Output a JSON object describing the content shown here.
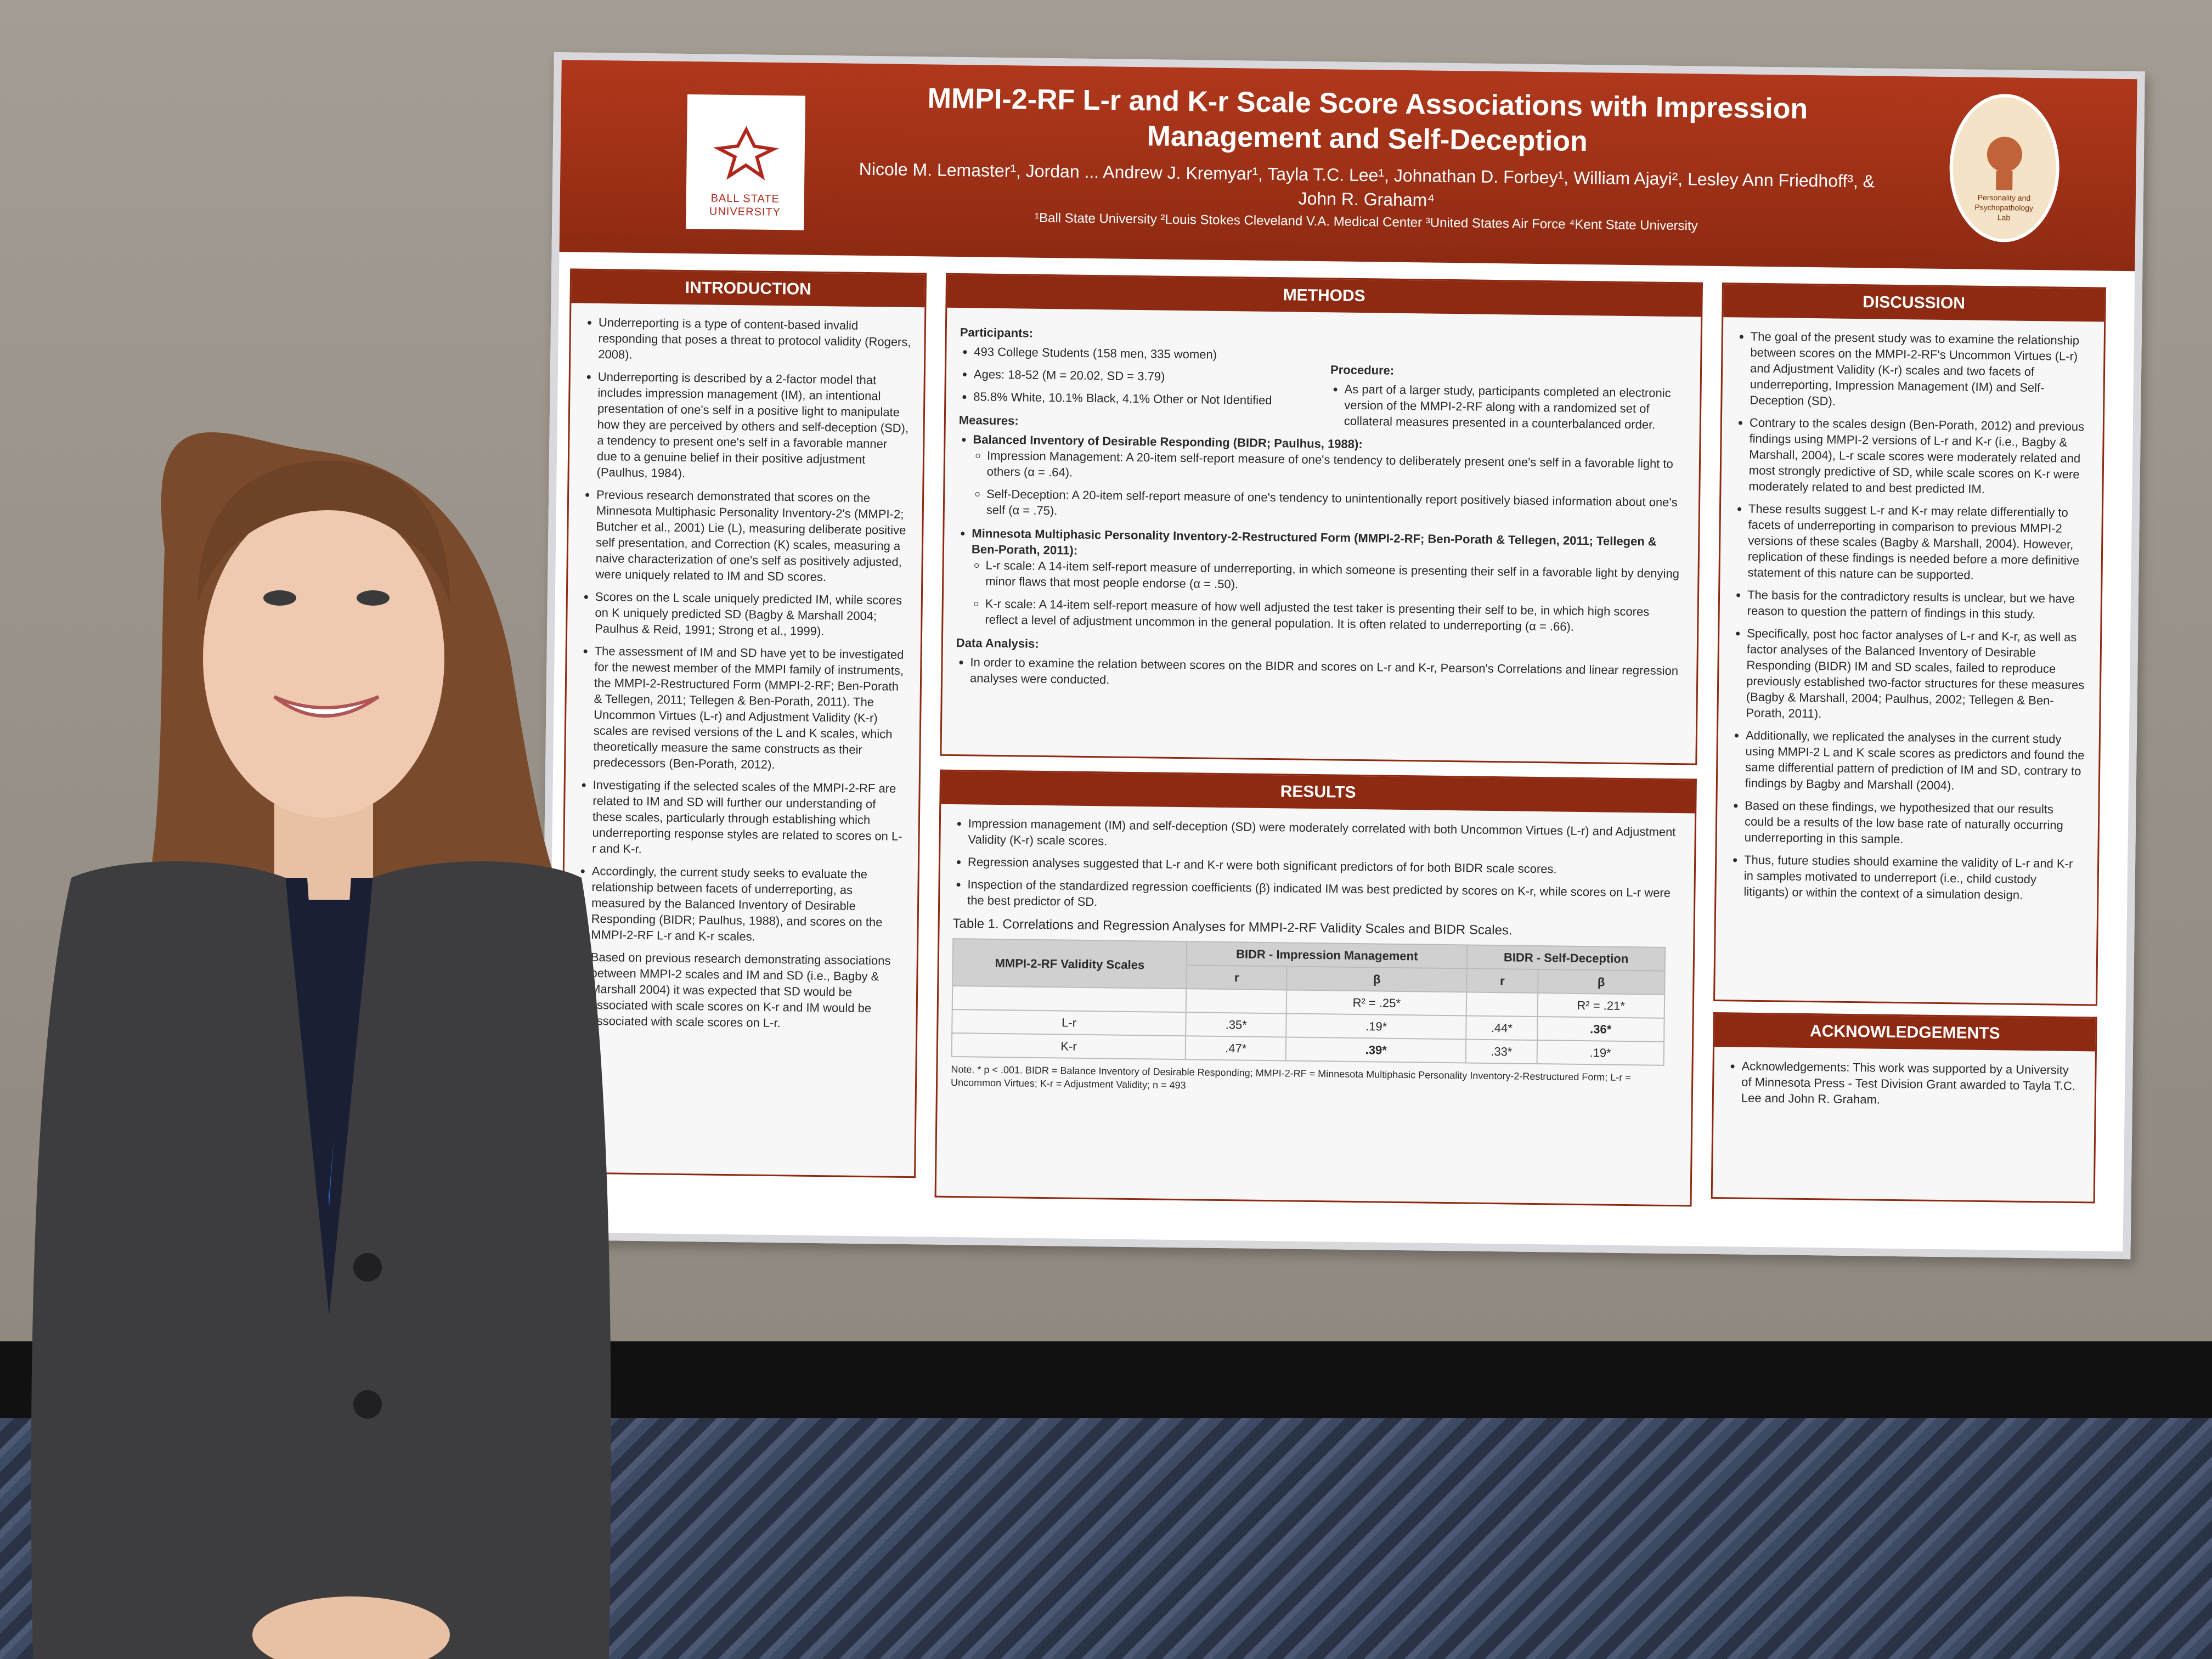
{
  "poster": {
    "title": "MMPI-2-RF L-r and K-r Scale Score Associations with Impression Management and Self-Deception",
    "authors": "Nicole M. Lemaster¹, Jordan ... Andrew J. Kremyar¹, Tayla T.C. Lee¹, Johnathan D. Forbey¹, William Ajayi², Lesley Ann Friedhoff³, & John R. Graham⁴",
    "affiliations": "¹Ball State University  ²Louis Stokes Cleveland V.A. Medical Center  ³United States Air Force  ⁴Kent State University",
    "logo_left": "BALL STATE UNIVERSITY",
    "logo_right": "Personality and Psychopathology Lab",
    "intro": {
      "heading": "INTRODUCTION",
      "items": [
        "Underreporting is a type of content-based invalid responding that poses a threat to protocol validity (Rogers, 2008).",
        "Underreporting is described by a 2-factor model that includes impression management (IM), an intentional presentation of one's self in a positive light to manipulate how they are perceived by others and self-deception (SD), a tendency to present one's self in a favorable manner due to a genuine belief in their positive adjustment (Paulhus, 1984).",
        "Previous research demonstrated that scores on the Minnesota Multiphasic Personality Inventory-2's (MMPI-2; Butcher et al., 2001) Lie (L), measuring deliberate positive self presentation, and Correction (K) scales, measuring a naive characterization of one's self as positively adjusted, were uniquely related to IM and SD scores.",
        "Scores on the L scale uniquely predicted IM, while scores on K uniquely predicted SD (Bagby & Marshall 2004; Paulhus & Reid, 1991; Strong et al., 1999).",
        "The assessment of IM and SD have yet to be investigated for the newest member of the MMPI family of instruments, the MMPI-2-Restructured Form (MMPI-2-RF; Ben-Porath & Tellegen, 2011; Tellegen & Ben-Porath, 2011). The Uncommon Virtues (L-r) and Adjustment Validity (K-r) scales are revised versions of the L and K scales, which theoretically measure the same constructs as their predecessors (Ben-Porath, 2012).",
        "Investigating if the selected scales of the MMPI-2-RF are related to IM and SD will further our understanding of these scales, particularly through establishing which underreporting response styles are related to scores on L-r and K-r.",
        "Accordingly, the current study seeks to evaluate the relationship between facets of underreporting, as measured by the Balanced Inventory of Desirable Responding (BIDR; Paulhus, 1988), and scores on the MMPI-2-RF L-r and K-r scales.",
        "Based on previous research demonstrating associations between MMPI-2 scales and IM and SD (i.e., Bagby & Marshall 2004) it was expected that SD would be associated with scale scores on K-r and IM would be associated with scale scores on L-r."
      ]
    },
    "methods": {
      "heading": "METHODS",
      "participants_label": "Participants:",
      "participants": [
        "493 College Students (158 men, 335 women)",
        "Ages: 18-52 (M = 20.02, SD = 3.79)",
        "85.8% White, 10.1% Black, 4.1% Other or Not Identified"
      ],
      "procedure_label": "Procedure:",
      "procedure": "As part of a larger study, participants completed an electronic version of the MMPI-2-RF along with a randomized set of collateral measures presented in a counterbalanced order.",
      "measures_label": "Measures:",
      "bidr": "Balanced Inventory of Desirable Responding (BIDR; Paulhus, 1988):",
      "bidr_items": [
        "Impression Management: A 20-item self-report measure of one's tendency to deliberately present one's self in a favorable light to others (α = .64).",
        "Self-Deception: A 20-item self-report measure of one's tendency to unintentionally report positively biased information about one's self (α = .75)."
      ],
      "mmpi": "Minnesota Multiphasic Personality Inventory-2-Restructured Form (MMPI-2-RF; Ben-Porath & Tellegen, 2011; Tellegen & Ben-Porath, 2011):",
      "mmpi_items": [
        "L-r scale: A 14-item self-report measure of underreporting, in which someone is presenting their self in a favorable light by denying minor flaws that most people endorse (α = .50).",
        "K-r scale: A 14-item self-report measure of how well adjusted the test taker is presenting their self to be, in which high scores reflect a level of adjustment uncommon in the general population. It is often related to underreporting (α = .66)."
      ],
      "analysis_label": "Data Analysis:",
      "analysis": "In order to examine the relation between scores on the BIDR and scores on L-r and K-r, Pearson's Correlations and linear regression analyses were conducted."
    },
    "results": {
      "heading": "RESULTS",
      "items": [
        "Impression management (IM) and self-deception (SD) were moderately correlated with both Uncommon Virtues (L-r) and Adjustment Validity (K-r) scale scores.",
        "Regression analyses suggested that L-r and K-r were both significant predictors of for both BIDR scale scores.",
        "Inspection of the standardized regression coefficients (β) indicated IM was best predicted by scores on K-r, while scores on L-r were the best predictor of SD."
      ],
      "table_caption": "Table 1. Correlations and Regression Analyses for MMPI-2-RF Validity Scales and BIDR Scales.",
      "col_group_1": "BIDR - Impression Management",
      "col_group_2": "BIDR - Self-Deception",
      "row_head": "MMPI-2-RF Validity Scales",
      "r": "r",
      "beta": "β",
      "r2_im": "R² = .25*",
      "r2_sd": "R² = .21*",
      "rows": [
        {
          "scale": "L-r",
          "im_r": ".35*",
          "im_b": ".19*",
          "sd_r": ".44*",
          "sd_b": ".36*"
        },
        {
          "scale": "K-r",
          "im_r": ".47*",
          "im_b": ".39*",
          "sd_r": ".33*",
          "sd_b": ".19*"
        }
      ],
      "note": "Note. * p < .001. BIDR = Balance Inventory of Desirable Responding; MMPI-2-RF = Minnesota Multiphasic Personality Inventory-2-Restructured Form; L-r = Uncommon Virtues; K-r = Adjustment Validity; n = 493"
    },
    "discussion": {
      "heading": "DISCUSSION",
      "items": [
        "The goal of the present study was to examine the relationship between scores on the MMPI-2-RF's Uncommon Virtues (L-r) and Adjustment Validity (K-r) scales and two facets of underreporting, Impression Management (IM) and Self-Deception (SD).",
        "Contrary to the scales design (Ben-Porath, 2012) and previous findings using MMPI-2 versions of L-r and K-r (i.e., Bagby & Marshall, 2004), L-r scale scores were moderately related and most strongly predictive of SD, while scale scores on K-r were moderately related to and best predicted IM.",
        "These results suggest L-r and K-r may relate differentially to facets of underreporting in comparison to previous MMPI-2 versions of these scales (Bagby & Marshall, 2004). However, replication of these findings is needed before a more definitive statement of this nature can be supported.",
        "The basis for the contradictory results is unclear, but we have reason to question the pattern of findings in this study.",
        "Specifically, post hoc factor analyses of L-r and K-r, as well as factor analyses of the Balanced Inventory of Desirable Responding (BIDR) IM and SD scales, failed to reproduce previously established two-factor structures for these measures (Bagby & Marshall, 2004; Paulhus, 2002; Tellegen & Ben-Porath, 2011).",
        "Additionally, we replicated the analyses in the current study using MMPI-2 L and K scale scores as predictors and found the same differential pattern of prediction of IM and SD, contrary to findings by Bagby and Marshall (2004).",
        "Based on these findings, we hypothesized that our results could be a results of the low base rate of naturally occurring underreporting in this sample.",
        "Thus, future studies should examine the validity of L-r and K-r in samples motivated to underreport (i.e., child custody litigants) or within the context of a simulation design."
      ]
    },
    "ack": {
      "heading": "ACKNOWLEDGEMENTS",
      "text": "Acknowledgements: This work was supported by a University of Minnesota Press - Test Division Grant awarded to Tayla T.C. Lee and John R. Graham."
    }
  },
  "colors": {
    "banner": "#8e2a12",
    "wall": "#9b958c",
    "carpet": "#3d4a63"
  }
}
